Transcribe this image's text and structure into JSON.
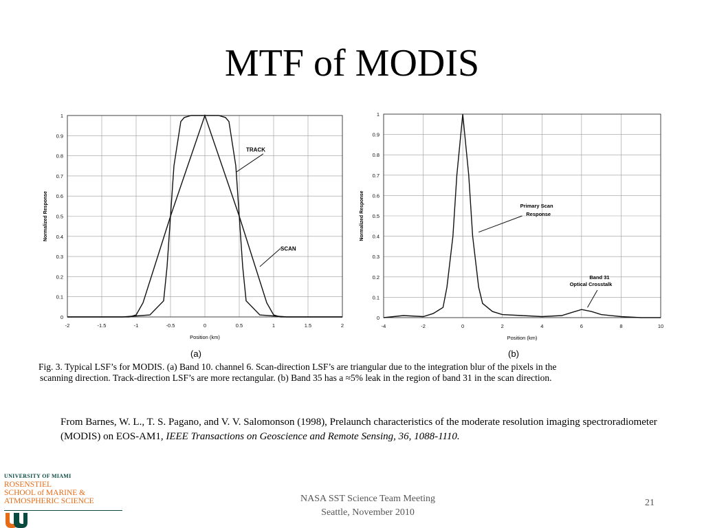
{
  "slide": {
    "title": "MTF of MODIS",
    "caption_line1": "Fig. 3.   Typical LSF’s for MODIS. (a) Band 10. channel 6. Scan-direction LSF’s are triangular due to the integration blur of the pixels in the",
    "caption_line2": "scanning direction. Track-direction LSF’s are more rectangular. (b) Band 35 has a ≈5% leak in the region of band 31 in the scan direction.",
    "reference_plain": "From Barnes, W. L., T. S. Pagano, and V. V. Salomonson (1998), Prelaunch characteristics of the moderate resolution imaging spectroradiometer (MODIS) on EOS-AM1, ",
    "reference_italic": "IEEE Transactions on Geoscience and Remote Sensing, 36, 1088-1110.",
    "footer_line1": "NASA SST Science Team Meeting",
    "footer_line2": "Seattle, November 2010",
    "page_number": "21",
    "logo_line1": "UNIVERSITY OF MIAMI",
    "logo_line2": "ROSENSTIEL",
    "logo_line3": "SCHOOL of MARINE &",
    "logo_line4": "ATMOSPHERIC SCIENCE",
    "logo_green": "#0a4a3f",
    "logo_orange": "#e56b16"
  },
  "chart_data": [
    {
      "type": "line",
      "panel_label": "(a)",
      "xlabel": "Position (km)",
      "ylabel": "Normalized Response",
      "xlim": [
        -2,
        2
      ],
      "ylim": [
        0,
        1
      ],
      "xticks": [
        "-2",
        "-1.5",
        "-1",
        "-0.5",
        "0",
        "0.5",
        "1",
        "1.5",
        "2"
      ],
      "yticks": [
        "0",
        "0.1",
        "0.2",
        "0.3",
        "0.4",
        "0.5",
        "0.6",
        "0.7",
        "0.8",
        "0.9",
        "1"
      ],
      "grid": true,
      "series": [
        {
          "name": "TRACK",
          "x": [
            -2,
            -1.2,
            -0.8,
            -0.6,
            -0.55,
            -0.5,
            -0.45,
            -0.35,
            -0.3,
            -0.2,
            0,
            0.2,
            0.3,
            0.35,
            0.45,
            0.5,
            0.55,
            0.6,
            0.8,
            1.2,
            2
          ],
          "y": [
            0,
            0,
            0.01,
            0.08,
            0.25,
            0.5,
            0.75,
            0.97,
            0.99,
            1.0,
            1.0,
            1.0,
            0.99,
            0.97,
            0.75,
            0.5,
            0.25,
            0.08,
            0.01,
            0,
            0
          ]
        },
        {
          "name": "SCAN",
          "x": [
            -2,
            -1.1,
            -1.0,
            -0.9,
            -0.5,
            0,
            0.5,
            0.9,
            1.0,
            1.1,
            2
          ],
          "y": [
            0,
            0,
            0.01,
            0.07,
            0.5,
            1.0,
            0.5,
            0.07,
            0.01,
            0,
            0
          ]
        }
      ],
      "annotations": [
        "TRACK",
        "SCAN"
      ]
    },
    {
      "type": "line",
      "panel_label": "(b)",
      "xlabel": "Position (km)",
      "ylabel": "Normalized Response",
      "xlim": [
        -4,
        10
      ],
      "ylim": [
        0,
        1
      ],
      "xticks": [
        "-4",
        "-2",
        "0",
        "2",
        "4",
        "6",
        "8",
        "10"
      ],
      "yticks": [
        "0",
        "0.1",
        "0.2",
        "0.3",
        "0.4",
        "0.5",
        "0.6",
        "0.7",
        "0.8",
        "0.9",
        "1"
      ],
      "grid": true,
      "series": [
        {
          "name": "Primary Scan Response",
          "x": [
            -4,
            -3,
            -2,
            -1.5,
            -1,
            -0.8,
            -0.5,
            -0.3,
            0,
            0.3,
            0.5,
            0.8,
            1,
            1.5,
            2,
            3,
            4,
            5,
            5.5,
            6,
            6.5,
            7,
            8,
            9,
            10
          ],
          "y": [
            0,
            0.01,
            0.005,
            0.02,
            0.05,
            0.15,
            0.4,
            0.7,
            1.0,
            0.7,
            0.4,
            0.15,
            0.07,
            0.03,
            0.015,
            0.01,
            0.005,
            0.01,
            0.025,
            0.04,
            0.03,
            0.015,
            0.005,
            0,
            0
          ]
        }
      ],
      "annotations": [
        "Primary Scan Response",
        "Band 31 Optical Crosstalk"
      ]
    }
  ]
}
